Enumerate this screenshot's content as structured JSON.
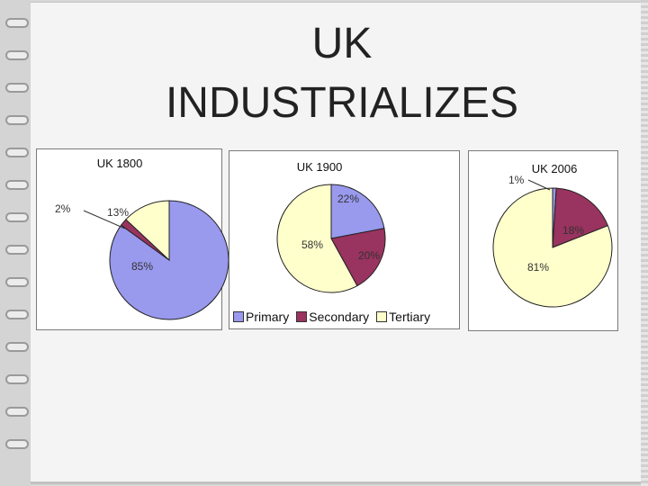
{
  "slide": {
    "title_line1": "UK",
    "title_line2": "INDUSTRIALIZES"
  },
  "colors": {
    "primary": "#9999ee",
    "secondary": "#99335f",
    "tertiary": "#ffffcc",
    "outline": "#222222"
  },
  "legend": {
    "primary": "Primary",
    "secondary": "Secondary",
    "tertiary": "Tertiary"
  },
  "chart_data": [
    {
      "type": "pie",
      "title": "UK 1800",
      "categories": [
        "Primary",
        "Secondary",
        "Tertiary"
      ],
      "values": [
        85,
        2,
        13
      ],
      "labels": [
        "85%",
        "2%",
        "13%"
      ]
    },
    {
      "type": "pie",
      "title": "UK 1900",
      "categories": [
        "Primary",
        "Secondary",
        "Tertiary"
      ],
      "values": [
        22,
        20,
        58
      ],
      "labels": [
        "22%",
        "20%",
        "58%"
      ]
    },
    {
      "type": "pie",
      "title": "UK 2006",
      "categories": [
        "Primary",
        "Secondary",
        "Tertiary"
      ],
      "values": [
        1,
        18,
        81
      ],
      "labels": [
        "1%",
        "18%",
        "81%"
      ]
    }
  ]
}
